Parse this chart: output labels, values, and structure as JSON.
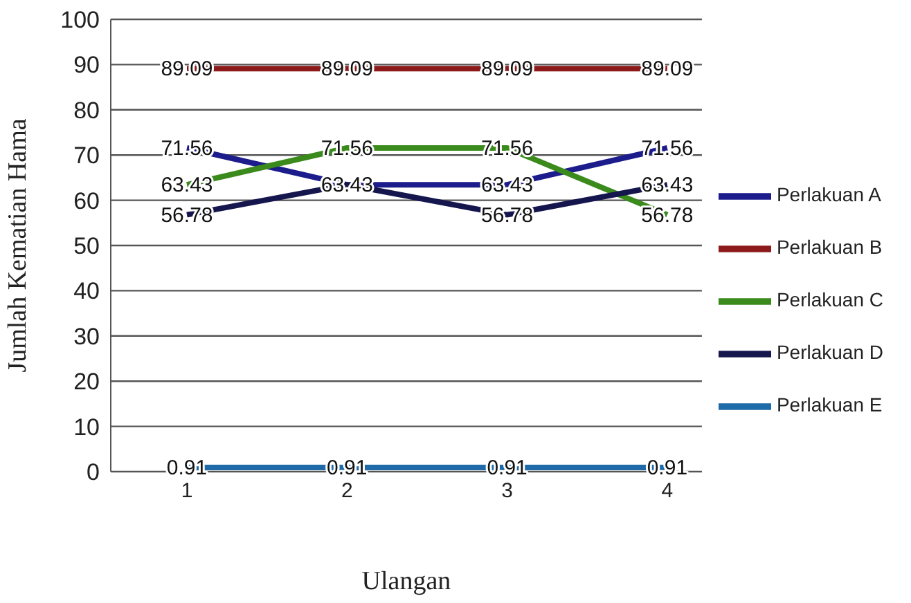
{
  "chart_data": {
    "type": "line",
    "xlabel": "Ulangan",
    "ylabel": "Jumlah Kematian Hama",
    "categories": [
      "1",
      "2",
      "3",
      "4"
    ],
    "series": [
      {
        "name": "Perlakuan A",
        "color": "#1c1c8c",
        "values": [
          71.56,
          63.43,
          63.43,
          71.56
        ],
        "value_labels": [
          "71.56",
          "63.43",
          "63.43",
          "71.56"
        ]
      },
      {
        "name": "Perlakuan B",
        "color": "#8c1a1a",
        "values": [
          89.09,
          89.09,
          89.09,
          89.09
        ],
        "value_labels": [
          "89.09",
          "89.09",
          "89.09",
          "89.09"
        ]
      },
      {
        "name": "Perlakuan C",
        "color": "#3a8a1c",
        "values": [
          63.43,
          71.56,
          71.56,
          56.78
        ],
        "value_labels": [
          "63.43",
          "71.56",
          "71.56",
          "56.78"
        ]
      },
      {
        "name": "Perlakuan D",
        "color": "#16164e",
        "values": [
          56.78,
          63.43,
          56.78,
          63.43
        ],
        "value_labels": [
          "56.78",
          null,
          "56.78",
          "63.43"
        ]
      },
      {
        "name": "Perlakuan E",
        "color": "#1f6aa8",
        "values": [
          0.91,
          0.91,
          0.91,
          0.91
        ],
        "value_labels": [
          "0.91",
          "0.91",
          "0.91",
          "0.91"
        ]
      }
    ],
    "ylim": [
      0,
      100
    ],
    "yticks": [
      0,
      10,
      20,
      30,
      40,
      50,
      60,
      70,
      80,
      90,
      100
    ],
    "grid": "y",
    "legend": "right",
    "marker": "none",
    "line_style": "solid"
  }
}
